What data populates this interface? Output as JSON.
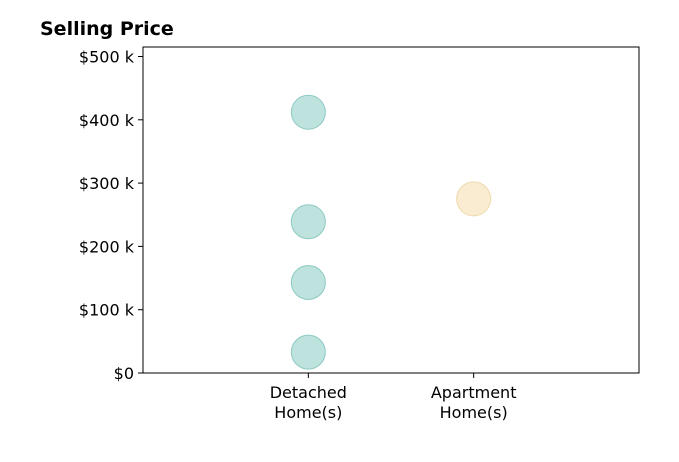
{
  "chart_data": {
    "type": "scatter",
    "title": "Selling Price",
    "xlabel": "",
    "ylabel": "",
    "categories": [
      [
        "Detached",
        "Home(s)"
      ],
      [
        "Apartment",
        "Home(s)"
      ]
    ],
    "x_range": [
      -1,
      2
    ],
    "y_ticks": [
      {
        "value": 0,
        "label": "$0"
      },
      {
        "value": 100000,
        "label": "$100 k"
      },
      {
        "value": 200000,
        "label": "$200 k"
      },
      {
        "value": 300000,
        "label": "$300 k"
      },
      {
        "value": 400000,
        "label": "$400 k"
      },
      {
        "value": 500000,
        "label": "$500 k"
      }
    ],
    "ylim": [
      0,
      515000
    ],
    "grid": false,
    "legend": "none",
    "series": [
      {
        "category_index": 0,
        "color": "#a8d8d2",
        "stroke": "#8ccac2",
        "values": [
          412000,
          239000,
          143000,
          33000
        ]
      },
      {
        "category_index": 1,
        "color": "#f8e6c2",
        "stroke": "#eed9ac",
        "values": [
          275000
        ]
      }
    ]
  }
}
